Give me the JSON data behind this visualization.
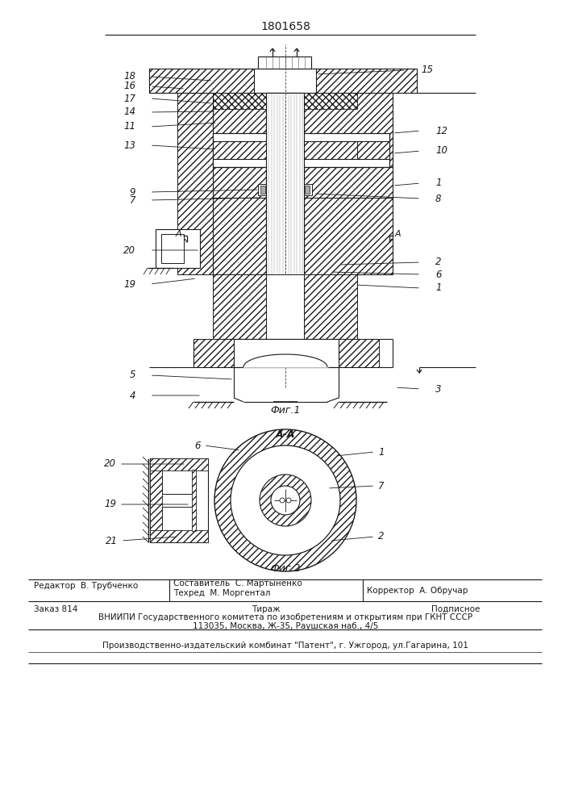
{
  "patent_number": "1801658",
  "fig1_label": "Фиг.1",
  "fig2_label": "Фиг.2",
  "section_label": "А-А",
  "line_color": "#1a1a1a",
  "footer_editor": "Редактор  В. Трубченко",
  "footer_composer": "Составитель  С. Мартыненко",
  "footer_techred": "Техред  М. Моргентал",
  "footer_corrector": "Корректор  А. Обручар",
  "footer_order": "Заказ 814",
  "footer_tirazh": "Тираж",
  "footer_podpisnoe": "Подписное",
  "footer_vniiipi": "ВНИИПИ Государственного комитета по изобретениям и открытиям при ГКНТ СССР",
  "footer_address": "113035, Москва, Ж-35, Раушская наб., 4/5",
  "footer_patent": "Производственно-издательский комбинат \"Патент\", г. Ужгород, ул.Гагарина, 101"
}
